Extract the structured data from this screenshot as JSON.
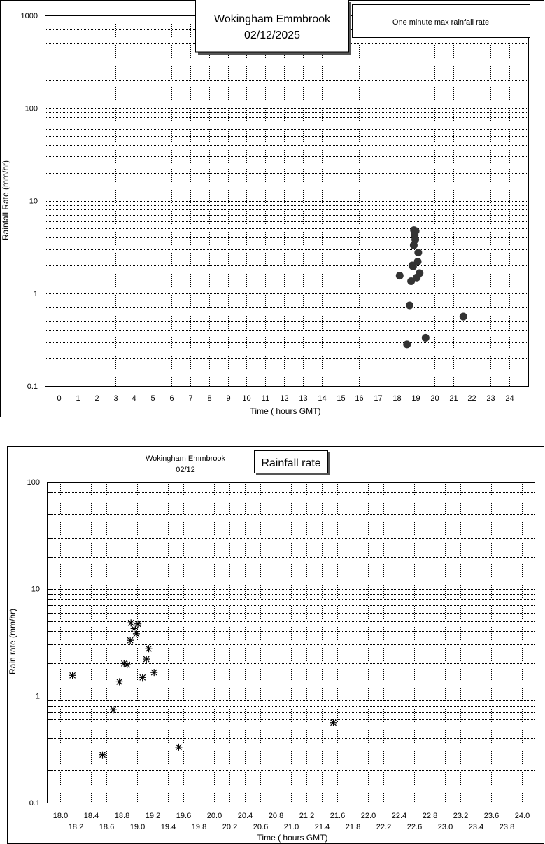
{
  "chart_data": [
    {
      "type": "scatter",
      "title": "Wokingham Emmbrook",
      "subtitle": "02/12/2025",
      "legend": "One minute max rainfall rate",
      "xlabel": "Time ( hours GMT)",
      "ylabel": "Rainfall Rate (mm/hr)",
      "xlim": [
        0,
        24
      ],
      "ylim": [
        0.1,
        1000
      ],
      "yscale": "log",
      "xticks": [
        "0",
        "1",
        "2",
        "3",
        "4",
        "5",
        "6",
        "7",
        "8",
        "9",
        "10",
        "11",
        "12",
        "13",
        "14",
        "15",
        "16",
        "17",
        "18",
        "19",
        "20",
        "21",
        "22",
        "23",
        "24"
      ],
      "yticks": [
        "0.1",
        "1",
        "10",
        "100",
        "1000"
      ],
      "grid": true,
      "marker": "filled-circle",
      "x": [
        18.16,
        18.55,
        18.69,
        18.77,
        18.83,
        18.87,
        18.91,
        18.92,
        18.96,
        18.99,
        19.01,
        19.07,
        19.12,
        19.15,
        19.22,
        19.54,
        21.55
      ],
      "y": [
        1.55,
        0.28,
        0.74,
        1.35,
        2.0,
        1.95,
        3.3,
        4.8,
        4.25,
        3.8,
        4.7,
        1.48,
        2.2,
        2.75,
        1.65,
        0.33,
        0.56
      ]
    },
    {
      "type": "scatter",
      "title": "Wokingham Emmbrook",
      "subtitle": "02/12",
      "legend": "Rainfall rate",
      "xlabel": "Time ( hours GMT)",
      "ylabel": "Rain rate (mm/hr)",
      "xlim": [
        18.0,
        24.0
      ],
      "ylim": [
        0.1,
        100
      ],
      "yscale": "log",
      "xticks": [
        "18.0",
        "18.2",
        "18.4",
        "18.6",
        "18.8",
        "19.0",
        "19.2",
        "19.4",
        "19.6",
        "19.8",
        "20.0",
        "20.2",
        "20.4",
        "20.6",
        "20.8",
        "21.0",
        "21.2",
        "21.4",
        "21.6",
        "21.8",
        "22.0",
        "22.2",
        "22.4",
        "22.6",
        "22.8",
        "23.0",
        "23.2",
        "23.4",
        "23.6",
        "23.8",
        "24.0"
      ],
      "yticks": [
        "0.1",
        "1",
        "10",
        "100"
      ],
      "grid": true,
      "marker": "asterisk",
      "x": [
        18.16,
        18.55,
        18.69,
        18.77,
        18.83,
        18.87,
        18.91,
        18.92,
        18.96,
        18.99,
        19.01,
        19.07,
        19.12,
        19.15,
        19.22,
        19.54,
        21.55
      ],
      "y": [
        1.55,
        0.28,
        0.74,
        1.35,
        2.0,
        1.95,
        3.3,
        4.8,
        4.25,
        3.8,
        4.7,
        1.48,
        2.2,
        2.75,
        1.65,
        0.33,
        0.56
      ]
    }
  ],
  "colors": {
    "marker": "#333333",
    "grid": "#000000",
    "background": "#ffffff"
  }
}
